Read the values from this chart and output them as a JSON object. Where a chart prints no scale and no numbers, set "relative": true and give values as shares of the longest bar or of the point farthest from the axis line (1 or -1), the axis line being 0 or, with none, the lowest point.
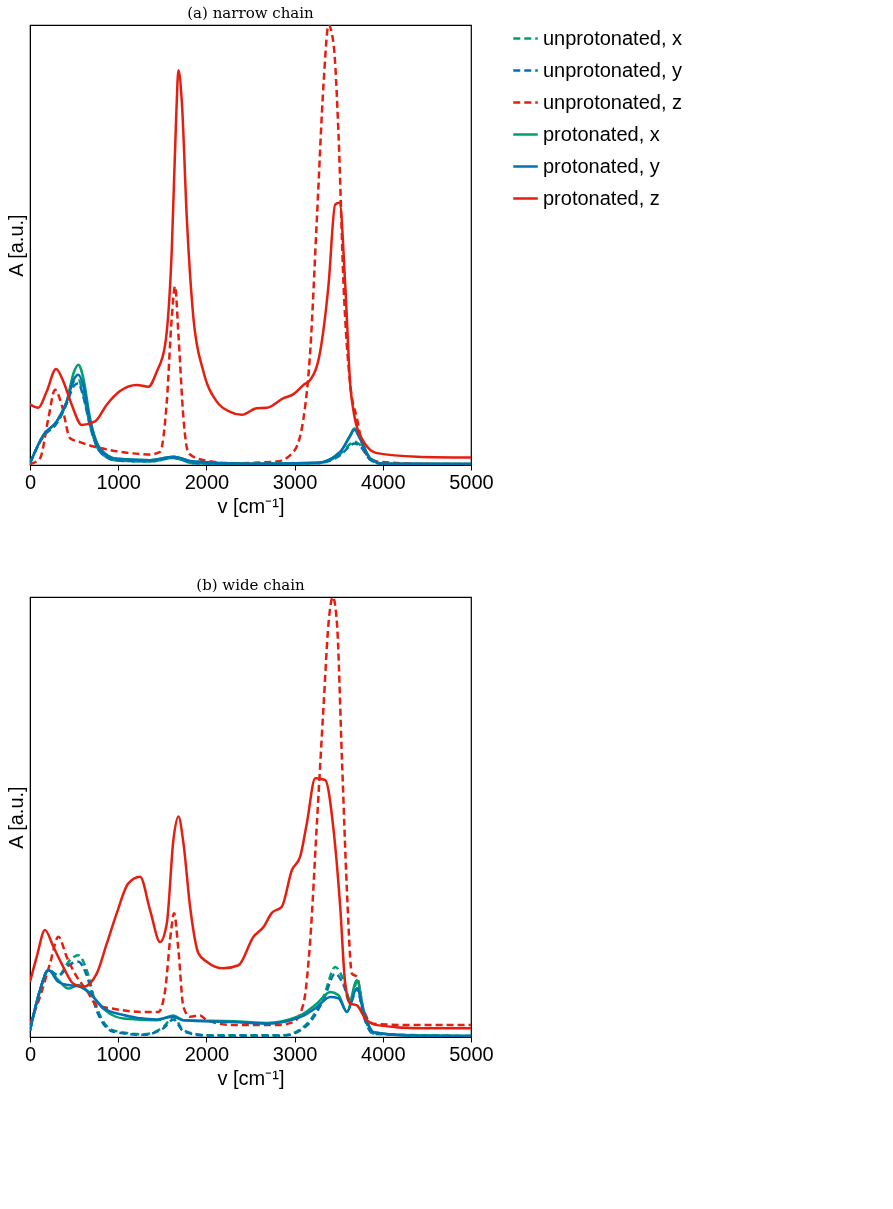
{
  "chart_data": [
    {
      "type": "line",
      "title": "(a) narrow chain",
      "xlabel": "v [cm⁻¹]",
      "ylabel": "A [a.u.]",
      "relative": true,
      "xlim": [
        0,
        5000
      ],
      "xticks": [
        0,
        1000,
        2000,
        3000,
        4000,
        5000
      ],
      "grid": false,
      "legend": "right",
      "series": [
        {
          "name": "unprotonated, x",
          "color": "#009e73",
          "line_style": "dashed",
          "x": [
            0,
            151,
            303,
            416,
            499,
            548,
            605,
            681,
            794,
            983,
            1362,
            1626,
            1853,
            2496,
            3253,
            3517,
            3631,
            3677,
            3745,
            3858,
            4009,
            5000
          ],
          "values": [
            0.004,
            0.065,
            0.095,
            0.14,
            0.19,
            0.193,
            0.16,
            0.09,
            0.03,
            0.01,
            0.008,
            0.016,
            0.004,
            0.002,
            0.004,
            0.025,
            0.048,
            0.053,
            0.045,
            0.012,
            0.002,
            0.002
          ]
        },
        {
          "name": "unprotonated, y",
          "color": "#0072b2",
          "line_style": "dashed",
          "x": [
            0,
            151,
            303,
            416,
            499,
            548,
            605,
            681,
            794,
            983,
            1362,
            1626,
            1853,
            2496,
            3253,
            3517,
            3631,
            3677,
            3745,
            3858,
            4009,
            5000
          ],
          "values": [
            0.004,
            0.065,
            0.095,
            0.14,
            0.18,
            0.186,
            0.155,
            0.088,
            0.03,
            0.01,
            0.008,
            0.016,
            0.004,
            0.002,
            0.004,
            0.022,
            0.044,
            0.049,
            0.042,
            0.012,
            0.002,
            0.002
          ]
        },
        {
          "name": "unprotonated, z",
          "color": "#e51e10",
          "line_style": "dashed",
          "x": [
            0,
            113,
            208,
            284,
            359,
            454,
            567,
            719,
            908,
            1135,
            1362,
            1475,
            1551,
            1607,
            1645,
            1683,
            1740,
            1797,
            1967,
            2307,
            2799,
            2988,
            3101,
            3177,
            3253,
            3328,
            3385,
            3442,
            3498,
            3555,
            3631,
            3707,
            3782,
            3933,
            4387,
            5000
          ],
          "values": [
            0.002,
            0.015,
            0.106,
            0.171,
            0.137,
            0.061,
            0.052,
            0.042,
            0.034,
            0.027,
            0.024,
            0.03,
            0.144,
            0.334,
            0.406,
            0.296,
            0.106,
            0.027,
            0.011,
            0.004,
            0.008,
            0.03,
            0.106,
            0.258,
            0.561,
            0.865,
            1.0,
            0.956,
            0.751,
            0.41,
            0.182,
            0.106,
            0.038,
            0.008,
            0.003,
            0.002
          ]
        },
        {
          "name": "protonated, x",
          "color": "#009e73",
          "line_style": "solid",
          "x": [
            0,
            151,
            303,
            416,
            499,
            548,
            605,
            681,
            794,
            983,
            1362,
            1626,
            1853,
            2496,
            3253,
            3517,
            3631,
            3677,
            3745,
            3858,
            4009,
            5000
          ],
          "values": [
            0.004,
            0.068,
            0.099,
            0.144,
            0.212,
            0.228,
            0.197,
            0.106,
            0.038,
            0.014,
            0.011,
            0.019,
            0.008,
            0.003,
            0.005,
            0.03,
            0.068,
            0.083,
            0.061,
            0.015,
            0.003,
            0.002
          ]
        },
        {
          "name": "protonated, y",
          "color": "#0072b2",
          "line_style": "solid",
          "x": [
            0,
            151,
            303,
            416,
            499,
            548,
            605,
            681,
            794,
            983,
            1362,
            1626,
            1853,
            2496,
            3253,
            3517,
            3631,
            3677,
            3745,
            3858,
            4009,
            5000
          ],
          "values": [
            0.004,
            0.068,
            0.099,
            0.144,
            0.195,
            0.205,
            0.18,
            0.1,
            0.036,
            0.014,
            0.011,
            0.019,
            0.008,
            0.003,
            0.005,
            0.03,
            0.066,
            0.08,
            0.058,
            0.015,
            0.003,
            0.002
          ]
        },
        {
          "name": "protonated, z",
          "color": "#e51e10",
          "line_style": "solid",
          "x": [
            0,
            95,
            189,
            295,
            378,
            473,
            586,
            738,
            870,
            1021,
            1210,
            1343,
            1437,
            1532,
            1607,
            1657,
            1683,
            1721,
            1778,
            1853,
            1967,
            2118,
            2269,
            2402,
            2572,
            2685,
            2874,
            2988,
            3101,
            3177,
            3290,
            3385,
            3460,
            3510,
            3574,
            3631,
            3669,
            3782,
            3933,
            4387,
            5000
          ],
          "values": [
            0.138,
            0.13,
            0.167,
            0.218,
            0.19,
            0.137,
            0.091,
            0.099,
            0.137,
            0.168,
            0.182,
            0.178,
            0.212,
            0.273,
            0.486,
            0.789,
            0.897,
            0.827,
            0.561,
            0.334,
            0.212,
            0.144,
            0.121,
            0.114,
            0.129,
            0.13,
            0.152,
            0.161,
            0.182,
            0.193,
            0.258,
            0.41,
            0.592,
            0.596,
            0.41,
            0.182,
            0.121,
            0.053,
            0.027,
            0.019,
            0.017
          ]
        }
      ]
    },
    {
      "type": "line",
      "title": "(b) wide chain",
      "xlabel": "v [cm⁻¹]",
      "ylabel": "A [a.u.]",
      "relative": true,
      "xlim": [
        0,
        5000
      ],
      "xticks": [
        0,
        1000,
        2000,
        3000,
        4000,
        5000
      ],
      "grid": false,
      "legend": "right",
      "series": [
        {
          "name": "unprotonated, x",
          "color": "#009e73",
          "line_style": "dashed",
          "x": [
            0,
            113,
            208,
            322,
            454,
            548,
            643,
            756,
            946,
            1286,
            1513,
            1626,
            1740,
            2004,
            2874,
            3139,
            3328,
            3461,
            3555,
            3631,
            3707,
            3782,
            3896,
            5000
          ],
          "values": [
            0.015,
            0.106,
            0.152,
            0.14,
            0.175,
            0.186,
            0.152,
            0.068,
            0.015,
            0.006,
            0.023,
            0.046,
            0.015,
            0.004,
            0.004,
            0.03,
            0.091,
            0.159,
            0.129,
            0.083,
            0.125,
            0.053,
            0.008,
            0.002
          ]
        },
        {
          "name": "unprotonated, y",
          "color": "#0072b2",
          "line_style": "dashed",
          "x": [
            0,
            113,
            208,
            322,
            454,
            548,
            643,
            756,
            946,
            1286,
            1513,
            1626,
            1740,
            2004,
            2874,
            3139,
            3328,
            3461,
            3555,
            3631,
            3707,
            3782,
            3896,
            5000
          ],
          "values": [
            0.015,
            0.106,
            0.152,
            0.14,
            0.165,
            0.171,
            0.14,
            0.06,
            0.012,
            0.005,
            0.02,
            0.04,
            0.013,
            0.003,
            0.003,
            0.026,
            0.085,
            0.144,
            0.118,
            0.077,
            0.11,
            0.048,
            0.007,
            0.002
          ]
        },
        {
          "name": "unprotonated, z",
          "color": "#e51e10",
          "line_style": "dashed",
          "x": [
            0,
            113,
            227,
            322,
            416,
            530,
            643,
            756,
            946,
            1286,
            1456,
            1532,
            1596,
            1634,
            1683,
            1740,
            1815,
            1929,
            2004,
            2307,
            2799,
            2988,
            3101,
            3177,
            3253,
            3328,
            3385,
            3434,
            3480,
            3536,
            3593,
            3650,
            3707,
            3782,
            3896,
            4387,
            5000
          ],
          "values": [
            0.03,
            0.091,
            0.167,
            0.228,
            0.182,
            0.137,
            0.106,
            0.072,
            0.064,
            0.057,
            0.057,
            0.106,
            0.235,
            0.281,
            0.197,
            0.068,
            0.046,
            0.049,
            0.038,
            0.027,
            0.027,
            0.034,
            0.076,
            0.22,
            0.486,
            0.751,
            0.941,
            1.0,
            0.941,
            0.637,
            0.334,
            0.144,
            0.137,
            0.061,
            0.03,
            0.027,
            0.027
          ]
        },
        {
          "name": "protonated, x",
          "color": "#009e73",
          "line_style": "solid",
          "x": [
            0,
            113,
            208,
            322,
            435,
            548,
            681,
            832,
            1059,
            1437,
            1626,
            1740,
            2307,
            2685,
            3063,
            3253,
            3404,
            3498,
            3593,
            3707,
            3782,
            3896,
            4387,
            5000
          ],
          "values": [
            0.015,
            0.106,
            0.152,
            0.129,
            0.11,
            0.118,
            0.099,
            0.064,
            0.042,
            0.038,
            0.049,
            0.038,
            0.036,
            0.032,
            0.049,
            0.076,
            0.102,
            0.095,
            0.057,
            0.129,
            0.061,
            0.011,
            0.003,
            0.002
          ]
        },
        {
          "name": "protonated, y",
          "color": "#0072b2",
          "line_style": "solid",
          "x": [
            0,
            113,
            208,
            322,
            435,
            548,
            681,
            832,
            1059,
            1437,
            1626,
            1740,
            2307,
            2685,
            3063,
            3253,
            3404,
            3498,
            3593,
            3707,
            3782,
            3896,
            4387,
            5000
          ],
          "values": [
            0.015,
            0.106,
            0.152,
            0.125,
            0.118,
            0.115,
            0.099,
            0.066,
            0.05,
            0.04,
            0.046,
            0.038,
            0.034,
            0.03,
            0.045,
            0.068,
            0.091,
            0.088,
            0.057,
            0.11,
            0.058,
            0.011,
            0.003,
            0.002
          ]
        },
        {
          "name": "protonated, z",
          "color": "#e51e10",
          "line_style": "solid",
          "x": [
            0,
            76,
            170,
            265,
            378,
            492,
            605,
            756,
            870,
            983,
            1115,
            1248,
            1362,
            1475,
            1551,
            1626,
            1683,
            1740,
            1815,
            1910,
            2004,
            2193,
            2363,
            2534,
            2647,
            2742,
            2855,
            2969,
            3063,
            3139,
            3234,
            3347,
            3442,
            3517,
            3574,
            3631,
            3707,
            3801,
            3933,
            4387,
            5000
          ],
          "values": [
            0.125,
            0.182,
            0.243,
            0.205,
            0.159,
            0.121,
            0.114,
            0.144,
            0.212,
            0.281,
            0.349,
            0.364,
            0.288,
            0.216,
            0.258,
            0.448,
            0.501,
            0.44,
            0.296,
            0.19,
            0.171,
            0.156,
            0.163,
            0.228,
            0.25,
            0.282,
            0.296,
            0.379,
            0.41,
            0.486,
            0.588,
            0.584,
            0.47,
            0.296,
            0.121,
            0.076,
            0.072,
            0.042,
            0.027,
            0.02,
            0.02
          ]
        }
      ]
    }
  ]
}
